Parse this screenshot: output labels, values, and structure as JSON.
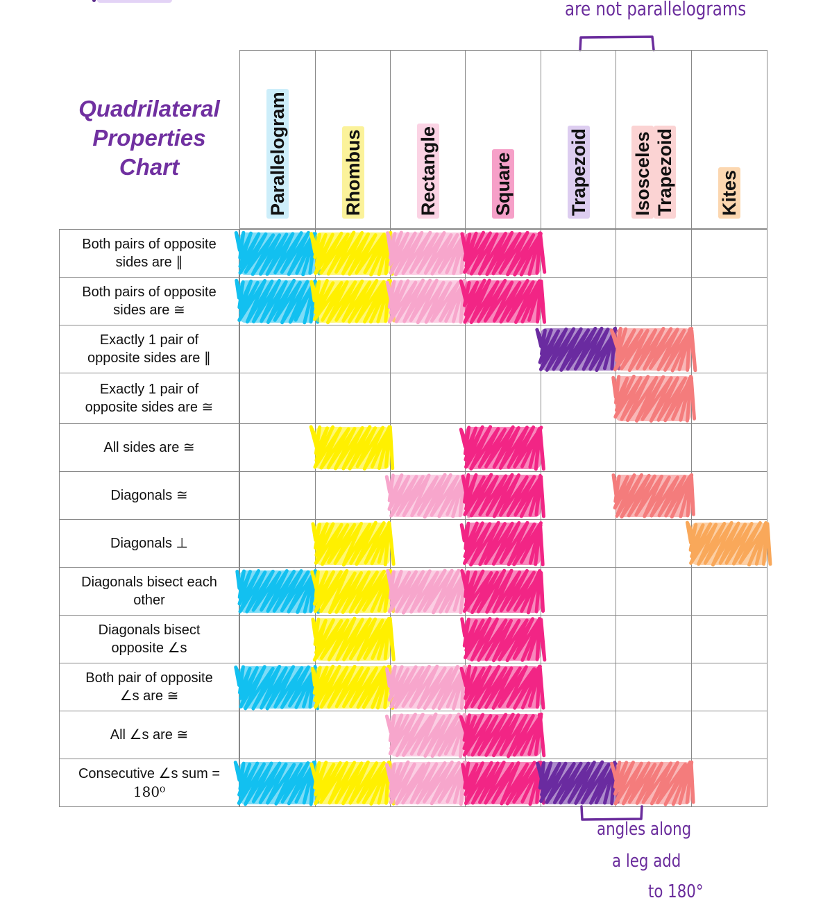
{
  "title": {
    "line1": "Quadrilateral",
    "line2": "Properties",
    "line3": "Chart"
  },
  "annotations": {
    "top_note": "are not parallelograms",
    "bottom_note_line1": "angles along",
    "bottom_note_line2": "a leg add",
    "bottom_note_line3": "to 180°"
  },
  "columns": [
    {
      "name": "Parallelogram",
      "lines": [
        "Parallelogram"
      ],
      "color": "#12c0f0",
      "highlight": "#cdeefa"
    },
    {
      "name": "Rhombus",
      "lines": [
        "Rhombus"
      ],
      "color": "#fff000",
      "highlight": "#fbf29a"
    },
    {
      "name": "Rectangle",
      "lines": [
        "Rectangle"
      ],
      "color": "#f7a6cc",
      "highlight": "#fbd3e4"
    },
    {
      "name": "Square",
      "lines": [
        "Square"
      ],
      "color": "#f22585",
      "highlight": "#f6a0c8"
    },
    {
      "name": "Trapezoid",
      "lines": [
        "Trapezoid"
      ],
      "color": "#6a2ba0",
      "highlight": "#ddcdf0"
    },
    {
      "name": "Isosceles Trapezoid",
      "lines": [
        "Isosceles",
        "Trapezoid"
      ],
      "color": "#f47c7c",
      "highlight": "#fbd3d3"
    },
    {
      "name": "Kites",
      "lines": [
        "Kites"
      ],
      "color": "#f9a85a",
      "highlight": "#fcd7b0"
    }
  ],
  "rows": [
    {
      "label": "Both pairs of opposite sides are ∥",
      "line1": "Both pairs of opposite",
      "line2": "sides are ∥",
      "checks": [
        1,
        1,
        1,
        1,
        0,
        0,
        0
      ]
    },
    {
      "label": "Both pairs of opposite sides are ≅",
      "line1": "Both pairs of opposite",
      "line2": "sides are ≅",
      "checks": [
        1,
        1,
        1,
        1,
        0,
        0,
        0
      ]
    },
    {
      "label": "Exactly 1 pair of opposite sides are ∥",
      "line1": "Exactly 1 pair of",
      "line2": "opposite sides are  ∥",
      "checks": [
        0,
        0,
        0,
        0,
        1,
        1,
        0
      ]
    },
    {
      "label": "Exactly 1 pair of opposite sides are ≅",
      "line1": "Exactly 1 pair of",
      "line2": "opposite sides are ≅",
      "checks": [
        0,
        0,
        0,
        0,
        0,
        1,
        0
      ]
    },
    {
      "label": "All sides are ≅",
      "line1": "All sides are ≅",
      "line2": "",
      "checks": [
        0,
        1,
        0,
        1,
        0,
        0,
        0
      ]
    },
    {
      "label": "Diagonals ≅",
      "line1": "Diagonals ≅",
      "line2": "",
      "checks": [
        0,
        0,
        1,
        1,
        0,
        1,
        0
      ]
    },
    {
      "label": "Diagonals ⊥",
      "line1": "Diagonals ⊥",
      "line2": "",
      "checks": [
        0,
        1,
        0,
        1,
        0,
        0,
        1
      ]
    },
    {
      "label": "Diagonals bisect each other",
      "line1": "Diagonals bisect each",
      "line2": "other",
      "checks": [
        1,
        1,
        1,
        1,
        0,
        0,
        0
      ]
    },
    {
      "label": "Diagonals bisect opposite ∠s",
      "line1": "Diagonals bisect",
      "line2": "opposite ∠s",
      "checks": [
        0,
        1,
        0,
        1,
        0,
        0,
        0
      ]
    },
    {
      "label": "Both pair of opposite ∠s are ≅",
      "line1": "Both pair of opposite",
      "line2": "∠s are ≅",
      "checks": [
        1,
        1,
        1,
        1,
        0,
        0,
        0
      ]
    },
    {
      "label": "All ∠s are ≅",
      "line1": "All ∠s are ≅",
      "line2": "",
      "checks": [
        0,
        0,
        1,
        1,
        0,
        0,
        0
      ]
    },
    {
      "label": "Consecutive ∠s sum = 180⁰",
      "line1": "Consecutive ∠s sum =",
      "line2": "180⁰",
      "checks": [
        1,
        1,
        1,
        1,
        1,
        1,
        0
      ]
    }
  ]
}
